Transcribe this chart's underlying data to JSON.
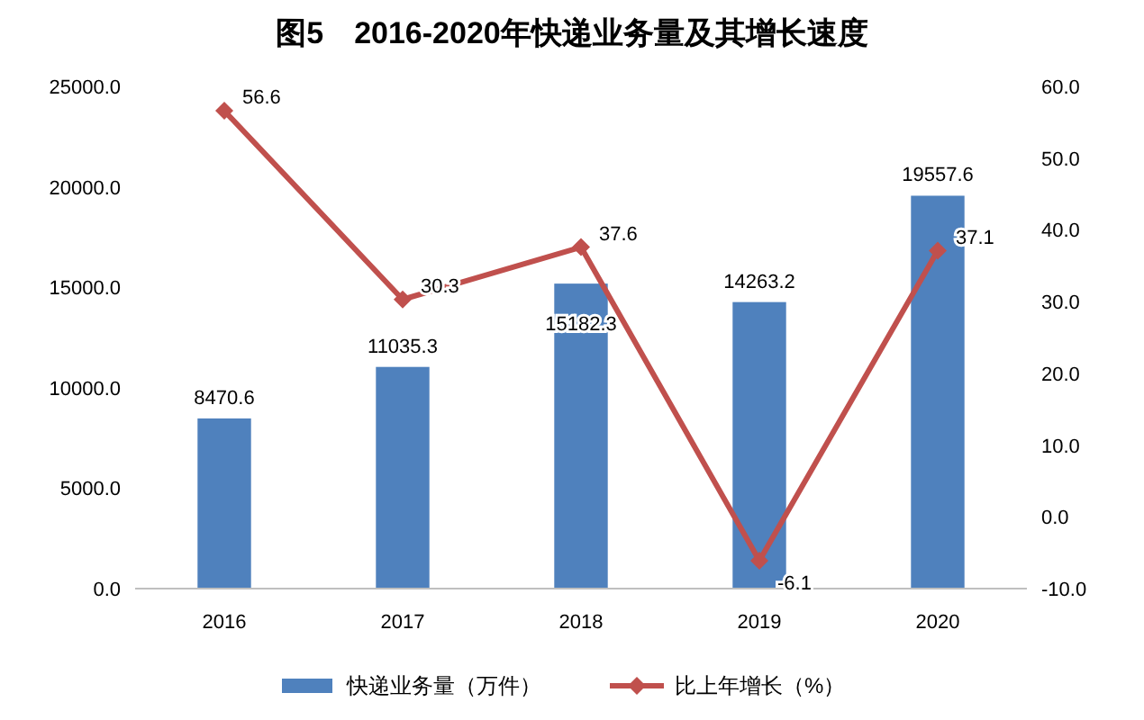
{
  "chart_data": {
    "type": "bar",
    "title": "图5　2016-2020年快递业务量及其增长速度",
    "categories": [
      "2016",
      "2017",
      "2018",
      "2019",
      "2020"
    ],
    "series": [
      {
        "name": "快递业务量（万件）",
        "type": "bar",
        "color": "#4f81bd",
        "values": [
          8470.6,
          11035.3,
          15182.3,
          14263.2,
          19557.6
        ]
      },
      {
        "name": "比上年增长（%）",
        "type": "line",
        "axis": "y2",
        "color": "#c0504d",
        "values": [
          56.6,
          30.3,
          37.6,
          -6.1,
          37.1
        ]
      }
    ],
    "ylim": [
      0,
      25000
    ],
    "yticks": [
      {
        "value": 0,
        "label": "0.0"
      },
      {
        "value": 5000,
        "label": "5000.0"
      },
      {
        "value": 10000,
        "label": "10000.0"
      },
      {
        "value": 15000,
        "label": "15000.0"
      },
      {
        "value": 20000,
        "label": "20000.0"
      },
      {
        "value": 25000,
        "label": "25000.0"
      }
    ],
    "y2lim": [
      -10,
      60
    ],
    "y2ticks": [
      {
        "value": -10,
        "label": "-10.0"
      },
      {
        "value": 0,
        "label": "0.0"
      },
      {
        "value": 10,
        "label": "10.0"
      },
      {
        "value": 20,
        "label": "20.0"
      },
      {
        "value": 30,
        "label": "30.0"
      },
      {
        "value": 40,
        "label": "40.0"
      },
      {
        "value": 50,
        "label": "50.0"
      },
      {
        "value": 60,
        "label": "60.0"
      }
    ],
    "marker": "diamond",
    "line_style": "solid",
    "legend": "bottom",
    "data_labels": true
  }
}
